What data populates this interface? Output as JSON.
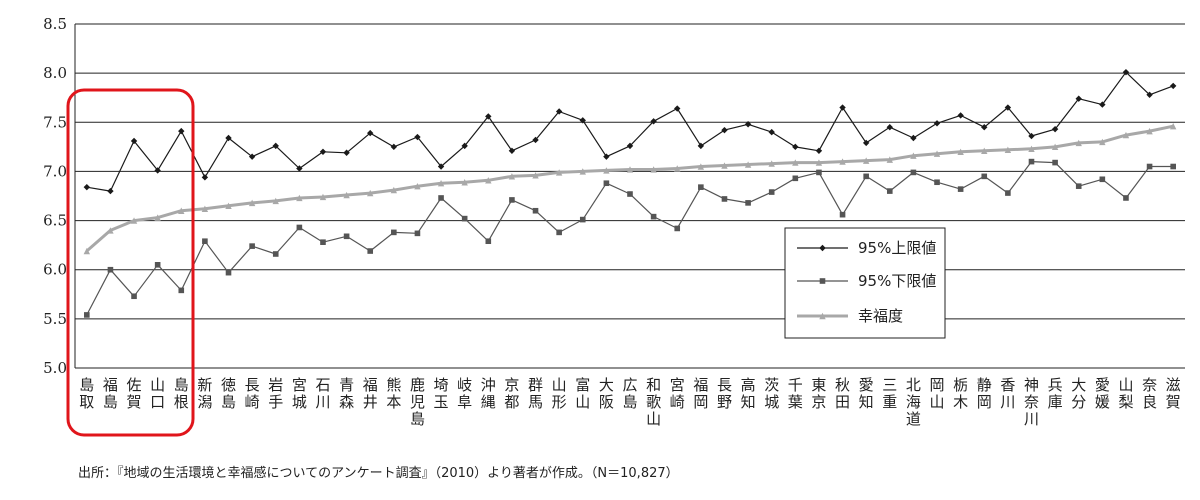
{
  "source_text": "出所：『地域の生活環境と幸福感についてのアンケート調査』（2010）より著者が作成。（N＝10,827）",
  "colors": {
    "upper": "#1a1a1a",
    "lower": "#555555",
    "happiness": "#a8a8a8",
    "highlight": "#e0151b",
    "axis": "#222222"
  },
  "highlight_group": [
    "島取",
    "福島",
    "佐賀",
    "山口",
    "島根"
  ],
  "chart_data": {
    "type": "line",
    "ylim": [
      5.0,
      8.5
    ],
    "yticks": [
      "5.0",
      "5.5",
      "6.0",
      "6.5",
      "7.0",
      "7.5",
      "8.0",
      "8.5"
    ],
    "grid": "horizontal",
    "legend_position": "right-middle",
    "categories": [
      "島取",
      "福島",
      "佐賀",
      "山口",
      "島根",
      "新潟",
      "徳島",
      "長崎",
      "岩手",
      "宮城",
      "石川",
      "青森",
      "福井",
      "熊本",
      "鹿児島",
      "埼玉",
      "岐阜",
      "沖縄",
      "京都",
      "群馬",
      "山形",
      "富山",
      "大阪",
      "広島",
      "和歌山",
      "宮崎",
      "福岡",
      "長野",
      "高知",
      "茨城",
      "千葉",
      "東京",
      "秋田",
      "愛知",
      "三重",
      "北海道",
      "岡山",
      "栃木",
      "静岡",
      "香川",
      "神奈川",
      "兵庫",
      "大分",
      "愛媛",
      "山梨",
      "奈良",
      "滋賀"
    ],
    "series": [
      {
        "name": "95%上限値",
        "marker": "diamond",
        "values": [
          6.84,
          6.8,
          7.31,
          7.01,
          7.41,
          6.94,
          7.34,
          7.15,
          7.26,
          7.03,
          7.2,
          7.19,
          7.39,
          7.25,
          7.35,
          7.05,
          7.26,
          7.56,
          7.21,
          7.32,
          7.61,
          7.52,
          7.15,
          7.26,
          7.51,
          7.64,
          7.26,
          7.42,
          7.48,
          7.4,
          7.25,
          7.21,
          7.65,
          7.29,
          7.45,
          7.34,
          7.49,
          7.57,
          7.45,
          7.65,
          7.36,
          7.43,
          7.74,
          7.68,
          8.01,
          7.78,
          7.87
        ]
      },
      {
        "name": "95%下限値",
        "marker": "square",
        "values": [
          5.54,
          6.0,
          5.73,
          6.05,
          5.79,
          6.29,
          5.97,
          6.24,
          6.16,
          6.43,
          6.28,
          6.34,
          6.19,
          6.38,
          6.37,
          6.73,
          6.52,
          6.29,
          6.71,
          6.6,
          6.38,
          6.51,
          6.88,
          6.77,
          6.54,
          6.42,
          6.84,
          6.72,
          6.68,
          6.79,
          6.93,
          6.99,
          6.56,
          6.95,
          6.8,
          6.99,
          6.89,
          6.82,
          6.95,
          6.78,
          7.1,
          7.09,
          6.85,
          6.92,
          6.73,
          7.05,
          7.05
        ]
      },
      {
        "name": "幸福度",
        "marker": "triangle",
        "values": [
          6.19,
          6.4,
          6.5,
          6.53,
          6.6,
          6.62,
          6.65,
          6.68,
          6.7,
          6.73,
          6.74,
          6.76,
          6.78,
          6.81,
          6.85,
          6.88,
          6.89,
          6.91,
          6.95,
          6.96,
          6.99,
          7.0,
          7.01,
          7.02,
          7.02,
          7.03,
          7.05,
          7.06,
          7.07,
          7.08,
          7.09,
          7.09,
          7.1,
          7.11,
          7.12,
          7.16,
          7.18,
          7.2,
          7.21,
          7.22,
          7.23,
          7.25,
          7.29,
          7.3,
          7.37,
          7.41,
          7.46
        ]
      }
    ]
  }
}
